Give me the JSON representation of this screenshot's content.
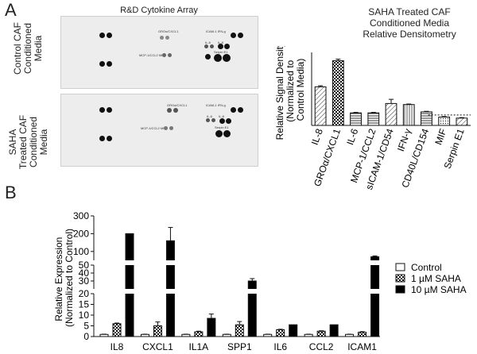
{
  "panel_a": {
    "letter": "A",
    "array_title": "R&D Cytokine Array",
    "rows": [
      {
        "label_lines": [
          "Control CAF",
          "Conditioned",
          "Media"
        ]
      },
      {
        "label_lines": [
          "SAHA",
          "Treated CAF",
          "Conditioned",
          "Media"
        ]
      }
    ],
    "spot_labels": {
      "gro": "GROα/CXCL1",
      "icam_ifn": "ICAM-1  IFN-g",
      "il6": "IL-6",
      "il8": "IL-8",
      "mcp_mif": "MCP-1/CCL2  MIF",
      "serpin": "Serpin E1"
    }
  },
  "panel_b": {
    "letter": "B",
    "legend": [
      {
        "label": "Control",
        "pattern": "white"
      },
      {
        "label": "1 µM SAHA",
        "pattern": "checker"
      },
      {
        "label": "10 µM SAHA",
        "pattern": "black"
      }
    ]
  },
  "chart_data": [
    {
      "type": "bar",
      "title_lines": [
        "SAHA Treated CAF",
        "Conditioned Media",
        "Relative Densitometry"
      ],
      "ylabel_lines": [
        "Relative Signal Density",
        "(Normalized to",
        "Control Media)"
      ],
      "categories": [
        "IL-8",
        "GROα/CXCL1",
        "IL-6",
        "MCP-1/CCL2",
        "sICAM-1/CD54",
        "IFN-γ",
        "CD40L/CD154",
        "MIF",
        "Serpin E1"
      ],
      "values": [
        3.7,
        6.2,
        1.2,
        1.2,
        2.1,
        2.0,
        1.3,
        0.8,
        0.7
      ],
      "errors": [
        0.1,
        0.15,
        0.05,
        0.05,
        0.4,
        0.05,
        0.05,
        0.05,
        0.05
      ],
      "patterns": [
        "diag",
        "checker",
        "hstripe",
        "hstripe",
        "diag",
        "vstripe",
        "hstripe",
        "dot",
        "diag"
      ],
      "ylim": [
        0,
        7
      ],
      "reference_line": 1
    },
    {
      "type": "bar",
      "ylabel_lines": [
        "Relative Expression",
        "(Normalized to Control)"
      ],
      "categories": [
        "IL8",
        "CXCL1",
        "IL1A",
        "SPP1",
        "IL6",
        "CCL2",
        "ICAM1"
      ],
      "series": [
        {
          "name": "Control",
          "values": [
            1,
            1,
            1,
            1,
            1,
            1,
            1
          ],
          "errors": [
            0.1,
            0.1,
            0.1,
            0.1,
            0.1,
            0.1,
            0.1
          ]
        },
        {
          "name": "1 µM SAHA",
          "values": [
            6,
            5,
            2.2,
            5.5,
            3.2,
            2.5,
            2
          ],
          "errors": [
            0.3,
            1.8,
            0.3,
            1.5,
            0.2,
            0.2,
            0.3
          ]
        },
        {
          "name": "10 µM SAHA",
          "values": [
            200,
            160,
            8.5,
            30,
            5.5,
            5.5,
            70
          ],
          "errors": [
            0,
            75,
            2,
            3,
            0,
            0,
            5
          ]
        }
      ],
      "y_ticks": [
        0,
        5,
        10,
        15,
        20,
        30,
        40,
        50,
        100,
        200,
        300
      ],
      "axis_breaks": true
    }
  ]
}
